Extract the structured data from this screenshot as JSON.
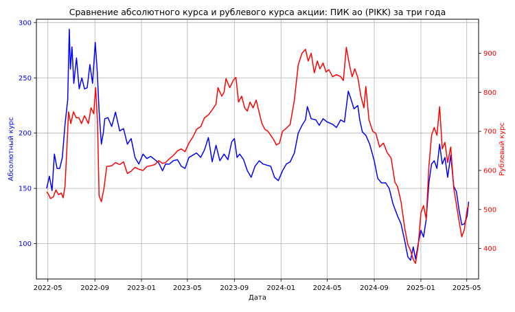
{
  "chart_data": {
    "type": "line",
    "title": "Сравнение абсолютного курса и рублевого курса акции: ПИК ао (PIKK) за три года",
    "xlabel": "Дата",
    "ylabel_left": "Абсолютный курс",
    "ylabel_right": "Рублевый курс",
    "grid": true,
    "xlim": [
      "2022-04-01",
      "2025-06-01"
    ],
    "x_ticks": [
      "2022-05",
      "2022-09",
      "2023-01",
      "2023-05",
      "2023-09",
      "2024-01",
      "2024-05",
      "2024-09",
      "2025-01",
      "2025-05"
    ],
    "y_left": {
      "ylim": [
        68,
        303
      ],
      "ticks": [
        100,
        150,
        200,
        250,
        300
      ],
      "color": "#0000ff"
    },
    "y_right": {
      "ylim": [
        322,
        987
      ],
      "ticks": [
        400,
        500,
        600,
        700,
        800,
        900
      ],
      "color": "#ff0000"
    },
    "series": [
      {
        "axis": "left",
        "color": "#0000ff",
        "points": [
          [
            "2022-04-28",
            150
          ],
          [
            "2022-05-05",
            161
          ],
          [
            "2022-05-12",
            148
          ],
          [
            "2022-05-18",
            181
          ],
          [
            "2022-05-25",
            168
          ],
          [
            "2022-06-01",
            168
          ],
          [
            "2022-06-08",
            178
          ],
          [
            "2022-06-15",
            208
          ],
          [
            "2022-06-22",
            230
          ],
          [
            "2022-06-26",
            294
          ],
          [
            "2022-06-29",
            258
          ],
          [
            "2022-07-03",
            278
          ],
          [
            "2022-07-08",
            245
          ],
          [
            "2022-07-15",
            268
          ],
          [
            "2022-07-22",
            240
          ],
          [
            "2022-07-29",
            250
          ],
          [
            "2022-08-05",
            240
          ],
          [
            "2022-08-12",
            241
          ],
          [
            "2022-08-19",
            262
          ],
          [
            "2022-08-26",
            245
          ],
          [
            "2022-09-02",
            282
          ],
          [
            "2022-09-07",
            257
          ],
          [
            "2022-09-12",
            220
          ],
          [
            "2022-09-18",
            190
          ],
          [
            "2022-09-23",
            200
          ],
          [
            "2022-09-27",
            213
          ],
          [
            "2022-10-05",
            214
          ],
          [
            "2022-10-15",
            206
          ],
          [
            "2022-10-25",
            219
          ],
          [
            "2022-11-05",
            202
          ],
          [
            "2022-11-15",
            204
          ],
          [
            "2022-11-25",
            190
          ],
          [
            "2022-12-05",
            195
          ],
          [
            "2022-12-15",
            178
          ],
          [
            "2022-12-25",
            172
          ],
          [
            "2023-01-05",
            181
          ],
          [
            "2023-01-15",
            177
          ],
          [
            "2023-01-25",
            179
          ],
          [
            "2023-02-05",
            176
          ],
          [
            "2023-02-15",
            173
          ],
          [
            "2023-02-25",
            166
          ],
          [
            "2023-03-05",
            172
          ],
          [
            "2023-03-15",
            172
          ],
          [
            "2023-03-25",
            175
          ],
          [
            "2023-04-05",
            176
          ],
          [
            "2023-04-15",
            170
          ],
          [
            "2023-04-25",
            168
          ],
          [
            "2023-05-05",
            178
          ],
          [
            "2023-05-15",
            180
          ],
          [
            "2023-05-25",
            182
          ],
          [
            "2023-06-05",
            178
          ],
          [
            "2023-06-15",
            185
          ],
          [
            "2023-06-25",
            196
          ],
          [
            "2023-07-05",
            174
          ],
          [
            "2023-07-15",
            189
          ],
          [
            "2023-07-25",
            175
          ],
          [
            "2023-08-05",
            181
          ],
          [
            "2023-08-15",
            176
          ],
          [
            "2023-08-25",
            192
          ],
          [
            "2023-09-01",
            195
          ],
          [
            "2023-09-08",
            178
          ],
          [
            "2023-09-15",
            181
          ],
          [
            "2023-09-25",
            176
          ],
          [
            "2023-10-05",
            166
          ],
          [
            "2023-10-15",
            160
          ],
          [
            "2023-10-25",
            170
          ],
          [
            "2023-11-05",
            175
          ],
          [
            "2023-11-15",
            172
          ],
          [
            "2023-11-25",
            171
          ],
          [
            "2023-12-05",
            170
          ],
          [
            "2023-12-15",
            160
          ],
          [
            "2023-12-25",
            157
          ],
          [
            "2024-01-05",
            166
          ],
          [
            "2024-01-15",
            172
          ],
          [
            "2024-01-25",
            174
          ],
          [
            "2024-02-05",
            182
          ],
          [
            "2024-02-15",
            200
          ],
          [
            "2024-02-25",
            207
          ],
          [
            "2024-03-05",
            212
          ],
          [
            "2024-03-10",
            224
          ],
          [
            "2024-03-20",
            213
          ],
          [
            "2024-04-01",
            212
          ],
          [
            "2024-04-10",
            207
          ],
          [
            "2024-04-20",
            213
          ],
          [
            "2024-05-01",
            210
          ],
          [
            "2024-05-15",
            208
          ],
          [
            "2024-05-25",
            205
          ],
          [
            "2024-06-05",
            212
          ],
          [
            "2024-06-15",
            210
          ],
          [
            "2024-06-25",
            238
          ],
          [
            "2024-07-01",
            232
          ],
          [
            "2024-07-10",
            222
          ],
          [
            "2024-07-20",
            225
          ],
          [
            "2024-07-25",
            212
          ],
          [
            "2024-08-01",
            201
          ],
          [
            "2024-08-10",
            198
          ],
          [
            "2024-08-20",
            190
          ],
          [
            "2024-09-01",
            175
          ],
          [
            "2024-09-10",
            159
          ],
          [
            "2024-09-20",
            155
          ],
          [
            "2024-10-01",
            155
          ],
          [
            "2024-10-10",
            150
          ],
          [
            "2024-10-20",
            136
          ],
          [
            "2024-11-01",
            125
          ],
          [
            "2024-11-10",
            118
          ],
          [
            "2024-11-20",
            102
          ],
          [
            "2024-11-28",
            88
          ],
          [
            "2024-12-05",
            85
          ],
          [
            "2024-12-12",
            97
          ],
          [
            "2024-12-18",
            86
          ],
          [
            "2024-12-25",
            100
          ],
          [
            "2025-01-01",
            112
          ],
          [
            "2025-01-08",
            106
          ],
          [
            "2025-01-15",
            122
          ],
          [
            "2025-01-22",
            155
          ],
          [
            "2025-01-29",
            172
          ],
          [
            "2025-02-05",
            175
          ],
          [
            "2025-02-12",
            168
          ],
          [
            "2025-02-19",
            190
          ],
          [
            "2025-02-26",
            172
          ],
          [
            "2025-03-05",
            178
          ],
          [
            "2025-03-12",
            160
          ],
          [
            "2025-03-20",
            180
          ],
          [
            "2025-03-28",
            152
          ],
          [
            "2025-04-04",
            147
          ],
          [
            "2025-04-11",
            130
          ],
          [
            "2025-04-18",
            117
          ],
          [
            "2025-04-25",
            118
          ],
          [
            "2025-05-02",
            125
          ],
          [
            "2025-05-06",
            138
          ]
        ]
      },
      {
        "axis": "right",
        "color": "#ff0000",
        "points": [
          [
            "2022-04-28",
            545
          ],
          [
            "2022-05-02",
            540
          ],
          [
            "2022-05-08",
            528
          ],
          [
            "2022-05-15",
            532
          ],
          [
            "2022-05-22",
            550
          ],
          [
            "2022-05-29",
            538
          ],
          [
            "2022-06-05",
            542
          ],
          [
            "2022-06-10",
            530
          ],
          [
            "2022-06-15",
            560
          ],
          [
            "2022-06-20",
            660
          ],
          [
            "2022-06-24",
            750
          ],
          [
            "2022-06-30",
            720
          ],
          [
            "2022-07-07",
            750
          ],
          [
            "2022-07-14",
            735
          ],
          [
            "2022-07-21",
            735
          ],
          [
            "2022-07-28",
            720
          ],
          [
            "2022-08-05",
            740
          ],
          [
            "2022-08-15",
            720
          ],
          [
            "2022-08-22",
            760
          ],
          [
            "2022-08-29",
            745
          ],
          [
            "2022-09-03",
            812
          ],
          [
            "2022-09-08",
            720
          ],
          [
            "2022-09-12",
            535
          ],
          [
            "2022-09-18",
            520
          ],
          [
            "2022-09-25",
            555
          ],
          [
            "2022-10-02",
            610
          ],
          [
            "2022-10-15",
            612
          ],
          [
            "2022-10-25",
            620
          ],
          [
            "2022-11-05",
            615
          ],
          [
            "2022-11-15",
            622
          ],
          [
            "2022-11-25",
            592
          ],
          [
            "2022-12-05",
            598
          ],
          [
            "2022-12-15",
            608
          ],
          [
            "2022-12-25",
            603
          ],
          [
            "2023-01-05",
            600
          ],
          [
            "2023-01-15",
            610
          ],
          [
            "2023-01-25",
            612
          ],
          [
            "2023-02-05",
            615
          ],
          [
            "2023-02-15",
            625
          ],
          [
            "2023-02-25",
            618
          ],
          [
            "2023-03-05",
            620
          ],
          [
            "2023-03-15",
            630
          ],
          [
            "2023-03-25",
            638
          ],
          [
            "2023-04-05",
            650
          ],
          [
            "2023-04-15",
            655
          ],
          [
            "2023-04-25",
            648
          ],
          [
            "2023-05-05",
            670
          ],
          [
            "2023-05-15",
            685
          ],
          [
            "2023-05-25",
            705
          ],
          [
            "2023-06-05",
            712
          ],
          [
            "2023-06-15",
            735
          ],
          [
            "2023-06-25",
            742
          ],
          [
            "2023-07-05",
            755
          ],
          [
            "2023-07-15",
            770
          ],
          [
            "2023-07-20",
            812
          ],
          [
            "2023-07-30",
            790
          ],
          [
            "2023-08-05",
            800
          ],
          [
            "2023-08-10",
            835
          ],
          [
            "2023-08-20",
            812
          ],
          [
            "2023-08-30",
            832
          ],
          [
            "2023-09-05",
            838
          ],
          [
            "2023-09-12",
            775
          ],
          [
            "2023-09-20",
            790
          ],
          [
            "2023-09-28",
            760
          ],
          [
            "2023-10-05",
            752
          ],
          [
            "2023-10-12",
            775
          ],
          [
            "2023-10-20",
            760
          ],
          [
            "2023-10-28",
            780
          ],
          [
            "2023-11-05",
            748
          ],
          [
            "2023-11-12",
            720
          ],
          [
            "2023-11-20",
            705
          ],
          [
            "2023-11-28",
            700
          ],
          [
            "2023-12-05",
            690
          ],
          [
            "2023-12-12",
            680
          ],
          [
            "2023-12-20",
            665
          ],
          [
            "2023-12-28",
            670
          ],
          [
            "2024-01-05",
            700
          ],
          [
            "2024-01-15",
            708
          ],
          [
            "2024-01-25",
            718
          ],
          [
            "2024-02-05",
            780
          ],
          [
            "2024-02-15",
            870
          ],
          [
            "2024-02-25",
            900
          ],
          [
            "2024-03-05",
            910
          ],
          [
            "2024-03-12",
            880
          ],
          [
            "2024-03-20",
            900
          ],
          [
            "2024-03-28",
            850
          ],
          [
            "2024-04-05",
            880
          ],
          [
            "2024-04-12",
            860
          ],
          [
            "2024-04-20",
            875
          ],
          [
            "2024-04-28",
            852
          ],
          [
            "2024-05-05",
            858
          ],
          [
            "2024-05-15",
            840
          ],
          [
            "2024-05-25",
            845
          ],
          [
            "2024-06-05",
            840
          ],
          [
            "2024-06-12",
            830
          ],
          [
            "2024-06-20",
            915
          ],
          [
            "2024-06-28",
            870
          ],
          [
            "2024-07-05",
            840
          ],
          [
            "2024-07-12",
            860
          ],
          [
            "2024-07-20",
            838
          ],
          [
            "2024-07-28",
            790
          ],
          [
            "2024-08-05",
            760
          ],
          [
            "2024-08-10",
            815
          ],
          [
            "2024-08-18",
            730
          ],
          [
            "2024-08-28",
            700
          ],
          [
            "2024-09-05",
            695
          ],
          [
            "2024-09-15",
            660
          ],
          [
            "2024-09-25",
            670
          ],
          [
            "2024-10-05",
            645
          ],
          [
            "2024-10-15",
            632
          ],
          [
            "2024-10-25",
            570
          ],
          [
            "2024-11-01",
            558
          ],
          [
            "2024-11-10",
            520
          ],
          [
            "2024-11-20",
            450
          ],
          [
            "2024-11-28",
            410
          ],
          [
            "2024-12-05",
            395
          ],
          [
            "2024-12-12",
            372
          ],
          [
            "2024-12-18",
            362
          ],
          [
            "2024-12-25",
            408
          ],
          [
            "2025-01-01",
            492
          ],
          [
            "2025-01-08",
            510
          ],
          [
            "2025-01-15",
            475
          ],
          [
            "2025-01-22",
            610
          ],
          [
            "2025-01-29",
            690
          ],
          [
            "2025-02-05",
            710
          ],
          [
            "2025-02-12",
            690
          ],
          [
            "2025-02-19",
            763
          ],
          [
            "2025-02-26",
            655
          ],
          [
            "2025-03-05",
            672
          ],
          [
            "2025-03-12",
            620
          ],
          [
            "2025-03-20",
            660
          ],
          [
            "2025-03-28",
            555
          ],
          [
            "2025-04-04",
            512
          ],
          [
            "2025-04-11",
            470
          ],
          [
            "2025-04-18",
            430
          ],
          [
            "2025-04-25",
            450
          ],
          [
            "2025-05-02",
            500
          ],
          [
            "2025-05-06",
            512
          ]
        ]
      }
    ]
  }
}
